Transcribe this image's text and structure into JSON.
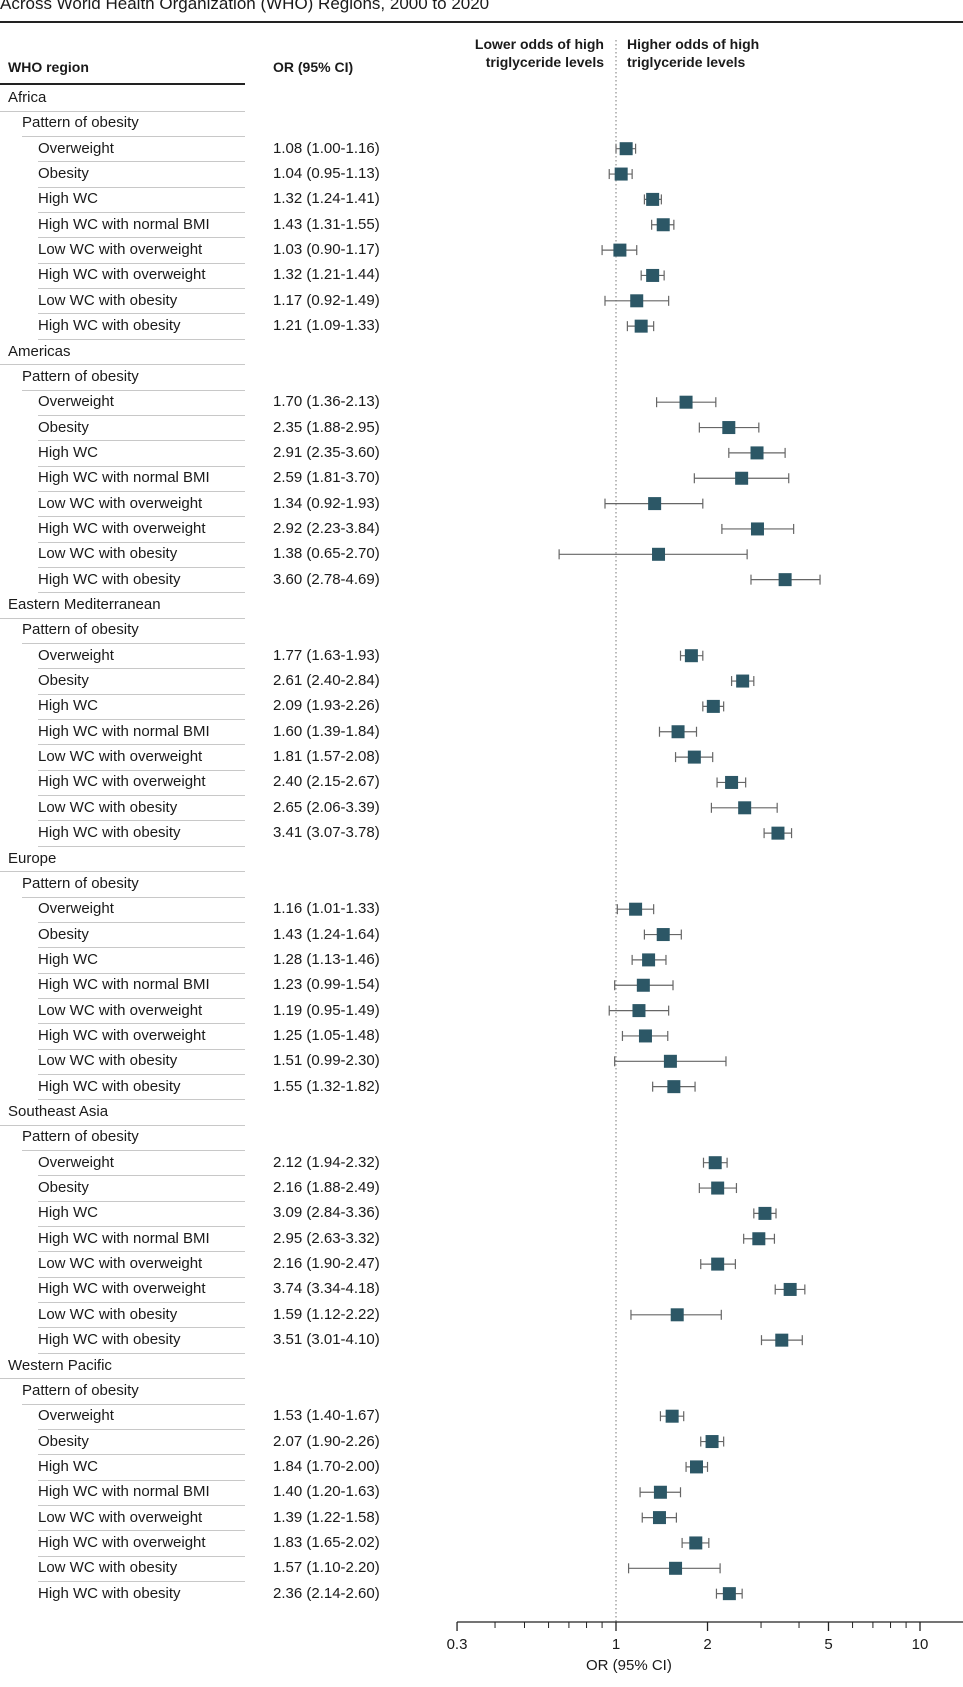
{
  "title": "Across World Health Organization (WHO) Regions, 2000 to 2020",
  "columns": {
    "region": "WHO region",
    "or": "OR (95% CI)",
    "lower": [
      "Lower odds of high",
      "triglyceride levels"
    ],
    "higher": [
      "Higher odds of high",
      "triglyceride levels"
    ]
  },
  "colors": {
    "marker": "#2c5766",
    "ci": "#666666"
  },
  "chart_data": {
    "type": "forest",
    "x_scale": "log",
    "xlim": [
      0.3,
      10
    ],
    "xticks": [
      "0.3",
      "1",
      "2",
      "5",
      "10"
    ],
    "xlabel": "OR (95% CI)",
    "reference_line": 1,
    "regions": [
      {
        "name": "Africa",
        "group": "Pattern of obesity",
        "items": [
          {
            "label": "Overweight",
            "or": 1.08,
            "lo": 1.0,
            "hi": 1.16,
            "text": "1.08 (1.00-1.16)"
          },
          {
            "label": "Obesity",
            "or": 1.04,
            "lo": 0.95,
            "hi": 1.13,
            "text": "1.04 (0.95-1.13)"
          },
          {
            "label": "High WC",
            "or": 1.32,
            "lo": 1.24,
            "hi": 1.41,
            "text": "1.32 (1.24-1.41)"
          },
          {
            "label": "High WC with normal BMI",
            "or": 1.43,
            "lo": 1.31,
            "hi": 1.55,
            "text": "1.43 (1.31-1.55)"
          },
          {
            "label": "Low WC with overweight",
            "or": 1.03,
            "lo": 0.9,
            "hi": 1.17,
            "text": "1.03 (0.90-1.17)"
          },
          {
            "label": "High WC with overweight",
            "or": 1.32,
            "lo": 1.21,
            "hi": 1.44,
            "text": "1.32 (1.21-1.44)"
          },
          {
            "label": "Low WC with obesity",
            "or": 1.17,
            "lo": 0.92,
            "hi": 1.49,
            "text": "1.17 (0.92-1.49)"
          },
          {
            "label": "High WC with obesity",
            "or": 1.21,
            "lo": 1.09,
            "hi": 1.33,
            "text": "1.21 (1.09-1.33)"
          }
        ]
      },
      {
        "name": "Americas",
        "group": "Pattern of obesity",
        "items": [
          {
            "label": "Overweight",
            "or": 1.7,
            "lo": 1.36,
            "hi": 2.13,
            "text": "1.70 (1.36-2.13)"
          },
          {
            "label": "Obesity",
            "or": 2.35,
            "lo": 1.88,
            "hi": 2.95,
            "text": "2.35 (1.88-2.95)"
          },
          {
            "label": "High WC",
            "or": 2.91,
            "lo": 2.35,
            "hi": 3.6,
            "text": "2.91 (2.35-3.60)"
          },
          {
            "label": "High WC with normal BMI",
            "or": 2.59,
            "lo": 1.81,
            "hi": 3.7,
            "text": "2.59 (1.81-3.70)"
          },
          {
            "label": "Low WC with overweight",
            "or": 1.34,
            "lo": 0.92,
            "hi": 1.93,
            "text": "1.34 (0.92-1.93)"
          },
          {
            "label": "High WC with overweight",
            "or": 2.92,
            "lo": 2.23,
            "hi": 3.84,
            "text": "2.92 (2.23-3.84)"
          },
          {
            "label": "Low WC with obesity",
            "or": 1.38,
            "lo": 0.65,
            "hi": 2.7,
            "text": "1.38 (0.65-2.70)"
          },
          {
            "label": "High WC with obesity",
            "or": 3.6,
            "lo": 2.78,
            "hi": 4.69,
            "text": "3.60 (2.78-4.69)"
          }
        ]
      },
      {
        "name": "Eastern Mediterranean",
        "group": "Pattern of obesity",
        "items": [
          {
            "label": "Overweight",
            "or": 1.77,
            "lo": 1.63,
            "hi": 1.93,
            "text": "1.77 (1.63-1.93)"
          },
          {
            "label": "Obesity",
            "or": 2.61,
            "lo": 2.4,
            "hi": 2.84,
            "text": "2.61 (2.40-2.84)"
          },
          {
            "label": "High WC",
            "or": 2.09,
            "lo": 1.93,
            "hi": 2.26,
            "text": "2.09 (1.93-2.26)"
          },
          {
            "label": "High WC with normal BMI",
            "or": 1.6,
            "lo": 1.39,
            "hi": 1.84,
            "text": "1.60 (1.39-1.84)"
          },
          {
            "label": "Low WC with overweight",
            "or": 1.81,
            "lo": 1.57,
            "hi": 2.08,
            "text": "1.81 (1.57-2.08)"
          },
          {
            "label": "High WC with overweight",
            "or": 2.4,
            "lo": 2.15,
            "hi": 2.67,
            "text": "2.40 (2.15-2.67)"
          },
          {
            "label": "Low WC with obesity",
            "or": 2.65,
            "lo": 2.06,
            "hi": 3.39,
            "text": "2.65 (2.06-3.39)"
          },
          {
            "label": "High WC with obesity",
            "or": 3.41,
            "lo": 3.07,
            "hi": 3.78,
            "text": "3.41 (3.07-3.78)"
          }
        ]
      },
      {
        "name": "Europe",
        "group": "Pattern of obesity",
        "items": [
          {
            "label": "Overweight",
            "or": 1.16,
            "lo": 1.01,
            "hi": 1.33,
            "text": "1.16 (1.01-1.33)"
          },
          {
            "label": "Obesity",
            "or": 1.43,
            "lo": 1.24,
            "hi": 1.64,
            "text": "1.43 (1.24-1.64)"
          },
          {
            "label": "High WC",
            "or": 1.28,
            "lo": 1.13,
            "hi": 1.46,
            "text": "1.28 (1.13-1.46)"
          },
          {
            "label": "High WC with normal BMI",
            "or": 1.23,
            "lo": 0.99,
            "hi": 1.54,
            "text": "1.23 (0.99-1.54)"
          },
          {
            "label": "Low WC with overweight",
            "or": 1.19,
            "lo": 0.95,
            "hi": 1.49,
            "text": "1.19 (0.95-1.49)"
          },
          {
            "label": "High WC with overweight",
            "or": 1.25,
            "lo": 1.05,
            "hi": 1.48,
            "text": "1.25 (1.05-1.48)"
          },
          {
            "label": "Low WC with obesity",
            "or": 1.51,
            "lo": 0.99,
            "hi": 2.3,
            "text": "1.51 (0.99-2.30)"
          },
          {
            "label": "High WC with obesity",
            "or": 1.55,
            "lo": 1.32,
            "hi": 1.82,
            "text": "1.55 (1.32-1.82)"
          }
        ]
      },
      {
        "name": "Southeast Asia",
        "group": "Pattern of obesity",
        "items": [
          {
            "label": "Overweight",
            "or": 2.12,
            "lo": 1.94,
            "hi": 2.32,
            "text": "2.12 (1.94-2.32)"
          },
          {
            "label": "Obesity",
            "or": 2.16,
            "lo": 1.88,
            "hi": 2.49,
            "text": "2.16 (1.88-2.49)"
          },
          {
            "label": "High WC",
            "or": 3.09,
            "lo": 2.84,
            "hi": 3.36,
            "text": "3.09 (2.84-3.36)"
          },
          {
            "label": "High WC with normal BMI",
            "or": 2.95,
            "lo": 2.63,
            "hi": 3.32,
            "text": "2.95 (2.63-3.32)"
          },
          {
            "label": "Low WC with overweight",
            "or": 2.16,
            "lo": 1.9,
            "hi": 2.47,
            "text": "2.16 (1.90-2.47)"
          },
          {
            "label": "High WC with overweight",
            "or": 3.74,
            "lo": 3.34,
            "hi": 4.18,
            "text": "3.74 (3.34-4.18)"
          },
          {
            "label": "Low WC with obesity",
            "or": 1.59,
            "lo": 1.12,
            "hi": 2.22,
            "text": "1.59 (1.12-2.22)"
          },
          {
            "label": "High WC with obesity",
            "or": 3.51,
            "lo": 3.01,
            "hi": 4.1,
            "text": "3.51 (3.01-4.10)"
          }
        ]
      },
      {
        "name": "Western Pacific",
        "group": "Pattern of obesity",
        "items": [
          {
            "label": "Overweight",
            "or": 1.53,
            "lo": 1.4,
            "hi": 1.67,
            "text": "1.53 (1.40-1.67)"
          },
          {
            "label": "Obesity",
            "or": 2.07,
            "lo": 1.9,
            "hi": 2.26,
            "text": "2.07 (1.90-2.26)"
          },
          {
            "label": "High WC",
            "or": 1.84,
            "lo": 1.7,
            "hi": 2.0,
            "text": "1.84 (1.70-2.00)"
          },
          {
            "label": "High WC with normal BMI",
            "or": 1.4,
            "lo": 1.2,
            "hi": 1.63,
            "text": "1.40 (1.20-1.63)"
          },
          {
            "label": "Low WC with overweight",
            "or": 1.39,
            "lo": 1.22,
            "hi": 1.58,
            "text": "1.39 (1.22-1.58)"
          },
          {
            "label": "High WC with overweight",
            "or": 1.83,
            "lo": 1.65,
            "hi": 2.02,
            "text": "1.83 (1.65-2.02)"
          },
          {
            "label": "Low WC with obesity",
            "or": 1.57,
            "lo": 1.1,
            "hi": 2.2,
            "text": "1.57 (1.10-2.20)"
          },
          {
            "label": "High WC with obesity",
            "or": 2.36,
            "lo": 2.14,
            "hi": 2.6,
            "text": "2.36 (2.14-2.60)"
          }
        ]
      }
    ]
  }
}
